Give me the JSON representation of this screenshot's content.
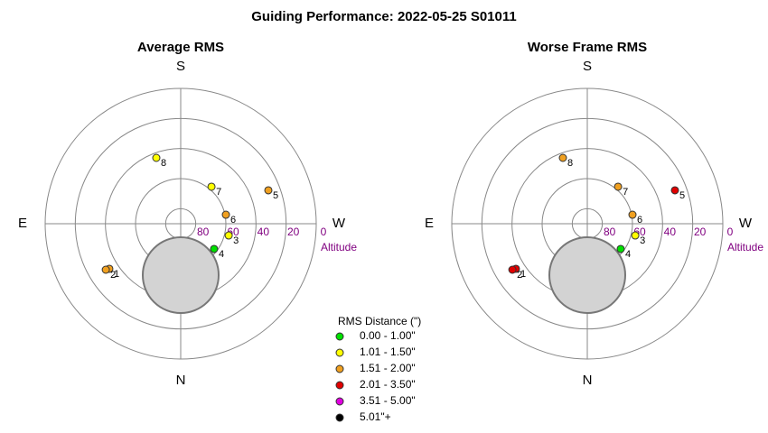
{
  "title": "Guiding Performance: 2022-05-25 S01011",
  "chart_data": [
    {
      "type": "polar",
      "title": "Average RMS",
      "directions": [
        "S",
        "W",
        "N",
        "E"
      ],
      "rlim": [
        90,
        0
      ],
      "rticks": [
        0,
        20,
        40,
        60,
        80
      ],
      "rlabel": "Altitude",
      "labels": [
        "1",
        "2",
        "3",
        "4",
        "5",
        "6",
        "7",
        "8"
      ],
      "azimuth": [
        57.7,
        58.4,
        283.8,
        307.1,
        249.1,
        258.7,
        219.7,
        159.7
      ],
      "altitude": [
        33.9,
        31.6,
        57.2,
        62.2,
        27.7,
        59.4,
        58,
        43.3
      ],
      "colors": [
        "#f0a020",
        "#f0a020",
        "#ffff00",
        "#00e000",
        "#f0a020",
        "#f0a020",
        "#ffff00",
        "#ffff00"
      ]
    },
    {
      "type": "polar",
      "title": "Worse Frame RMS",
      "directions": [
        "S",
        "W",
        "N",
        "E"
      ],
      "rlim": [
        90,
        0
      ],
      "rticks": [
        0,
        20,
        40,
        60,
        80
      ],
      "rlabel": "Altitude",
      "labels": [
        "1",
        "2",
        "3",
        "4",
        "5",
        "6",
        "7",
        "8"
      ],
      "azimuth": [
        57.7,
        58.4,
        283.8,
        307.1,
        249.1,
        258.7,
        219.7,
        159.7
      ],
      "altitude": [
        33.9,
        31.6,
        57.2,
        62.2,
        27.7,
        59.4,
        58,
        43.3
      ],
      "colors": [
        "#e00000",
        "#e00000",
        "#ffff00",
        "#00e000",
        "#e00000",
        "#f0a020",
        "#f0a020",
        "#f0a020"
      ]
    }
  ],
  "legend": {
    "title": "RMS Distance (\")",
    "entries": [
      {
        "label": "0.00 - 1.00\"",
        "color": "#00e000"
      },
      {
        "label": "1.01 - 1.50\"",
        "color": "#ffff00"
      },
      {
        "label": "1.51 - 2.00\"",
        "color": "#f0a020"
      },
      {
        "label": "2.01 - 3.50\"",
        "color": "#e00000"
      },
      {
        "label": "3.51 - 5.00\"",
        "color": "#e000e0"
      },
      {
        "label": "5.01\"+",
        "color": "#000000"
      }
    ]
  }
}
